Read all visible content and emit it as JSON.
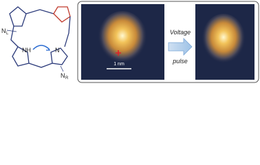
{
  "structure": {
    "nl": "N",
    "nl_sub": "L",
    "nh": "NH",
    "n": "N",
    "nr": "N",
    "nr_sub": "R"
  },
  "panel": {
    "arrow_label": [
      "Voltage",
      "pulse"
    ],
    "scale_bar": "1 nm"
  }
}
